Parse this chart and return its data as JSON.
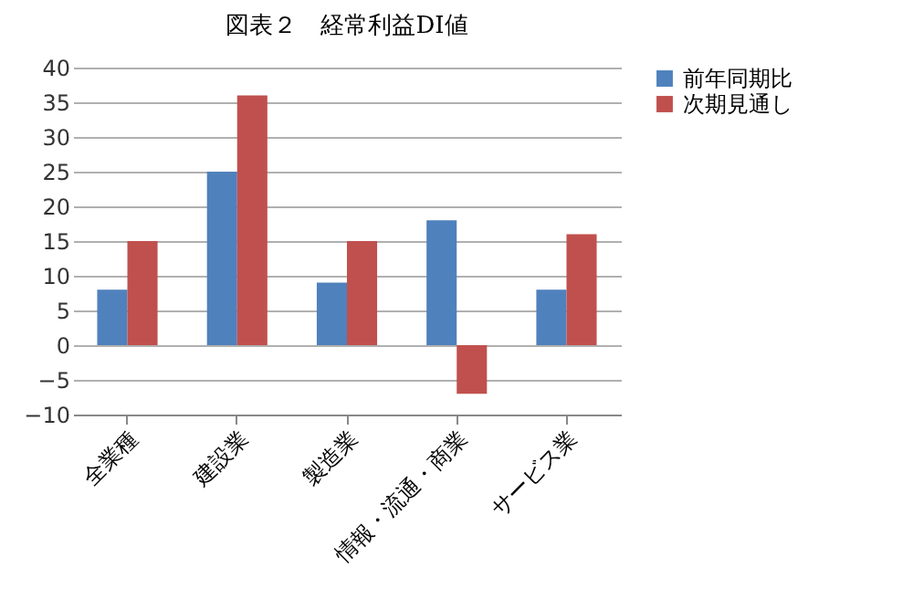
{
  "chart_data": {
    "type": "bar",
    "title": "図表２　経常利益DI値",
    "categories": [
      "全業種",
      "建設業",
      "製造業",
      "情報・流通・商業",
      "サービス業"
    ],
    "series": [
      {
        "name": "前年同期比",
        "color": "#4f81bd",
        "values": [
          8,
          25,
          9,
          18,
          8
        ]
      },
      {
        "name": "次期見通し",
        "color": "#c0504d",
        "values": [
          15,
          36,
          15,
          -7,
          16
        ]
      }
    ],
    "ylim": [
      -10,
      40
    ],
    "yticks": [
      -10,
      -5,
      0,
      5,
      10,
      15,
      20,
      25,
      30,
      35,
      40
    ],
    "grid": "y",
    "legend": "right"
  }
}
